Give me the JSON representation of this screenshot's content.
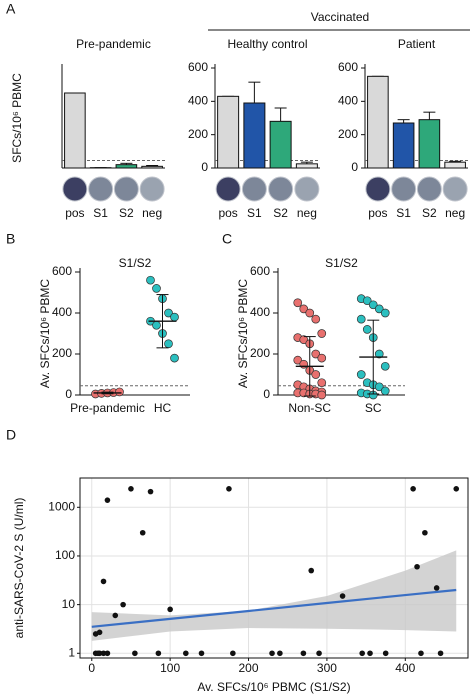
{
  "group_label": "Vaccinated",
  "chart_data": [
    {
      "type": "bar",
      "panel": "A",
      "title": "Pre-pandemic",
      "y_label": "SFCs/10⁶ PBMC",
      "categories": [
        "pos",
        "S1",
        "S2",
        "neg"
      ],
      "colors": [
        "#d9d9d9",
        "#2155a8",
        "#2ea87a",
        "#e6e6e6"
      ],
      "values": [
        450,
        2,
        20,
        10
      ],
      "errors": [
        0,
        0,
        8,
        5
      ],
      "ylim": [
        0,
        600
      ],
      "threshold": 45
    },
    {
      "type": "bar",
      "title": "Healthy control",
      "categories": [
        "pos",
        "S1",
        "S2",
        "neg"
      ],
      "colors": [
        "#d9d9d9",
        "#2155a8",
        "#2ea87a",
        "#e6e6e6"
      ],
      "values": [
        430,
        390,
        280,
        25
      ],
      "errors": [
        0,
        125,
        80,
        10
      ],
      "ylim": [
        0,
        600
      ],
      "yticks": [
        0,
        200,
        400,
        600
      ],
      "threshold": 45
    },
    {
      "type": "bar",
      "title": "Patient",
      "categories": [
        "pos",
        "S1",
        "S2",
        "neg"
      ],
      "colors": [
        "#d9d9d9",
        "#2155a8",
        "#2ea87a",
        "#e6e6e6"
      ],
      "values": [
        550,
        270,
        290,
        35
      ],
      "errors": [
        0,
        20,
        45,
        5
      ],
      "ylim": [
        0,
        600
      ],
      "yticks": [
        0,
        200,
        400,
        600
      ],
      "threshold": 45
    },
    {
      "type": "dot",
      "panel": "B",
      "title": "S1/S2",
      "y_label": "Av. SFCs/10⁶ PBMC",
      "categories": [
        "Pre-pandemic",
        "HC"
      ],
      "ylim": [
        0,
        600
      ],
      "yticks": [
        0,
        200,
        400,
        600
      ],
      "threshold": 45,
      "groups": [
        {
          "color": "#e8706e",
          "values": [
            5,
            8,
            10,
            12,
            15
          ],
          "mean": 10,
          "sd": 4
        },
        {
          "color": "#2bbfbf",
          "values": [
            560,
            520,
            470,
            400,
            380,
            360,
            340,
            300,
            250,
            180
          ],
          "mean": 360,
          "sd": 130
        }
      ]
    },
    {
      "type": "dot",
      "panel": "C",
      "title": "S1/S2",
      "y_label": "Av. SFCs/10⁶ PBMC",
      "categories": [
        "Non-SC",
        "SC"
      ],
      "ylim": [
        0,
        600
      ],
      "yticks": [
        0,
        200,
        400,
        600
      ],
      "threshold": 45,
      "groups": [
        {
          "color": "#e8706e",
          "values": [
            450,
            420,
            400,
            370,
            300,
            280,
            270,
            250,
            200,
            180,
            170,
            150,
            120,
            100,
            60,
            50,
            40,
            30,
            20,
            15,
            10,
            10,
            5,
            5,
            0
          ],
          "mean": 140,
          "sd": 145
        },
        {
          "color": "#2bbfbf",
          "values": [
            470,
            460,
            440,
            420,
            400,
            370,
            320,
            280,
            200,
            140,
            100,
            60,
            50,
            40,
            20,
            10,
            5,
            0
          ],
          "mean": 185,
          "sd": 180
        }
      ]
    },
    {
      "type": "scatter",
      "panel": "D",
      "x_label": "Av. SFCs/10⁶ PBMC (S1/S2)",
      "y_label": "anti-SARS-CoV-2 S (U/ml)",
      "log_y": true,
      "grid": true,
      "color": "#111111",
      "xlim": [
        -15,
        480
      ],
      "ylim": [
        0.8,
        4000
      ],
      "xticks": [
        0,
        100,
        200,
        300,
        400
      ],
      "yticks": [
        1,
        10,
        100,
        1000
      ],
      "x": [
        5,
        8,
        10,
        15,
        20,
        5,
        10,
        15,
        20,
        30,
        40,
        50,
        55,
        65,
        75,
        85,
        100,
        120,
        140,
        175,
        180,
        230,
        240,
        270,
        280,
        290,
        320,
        345,
        355,
        375,
        410,
        415,
        420,
        425,
        440,
        445,
        465
      ],
      "values": [
        1,
        1,
        1,
        1,
        1,
        2.5,
        2.7,
        30,
        1400,
        6,
        10,
        2400,
        1,
        300,
        2100,
        1,
        8,
        1,
        1,
        2400,
        1,
        1,
        1,
        1,
        50,
        1,
        15,
        1,
        1,
        1,
        2400,
        60,
        1,
        300,
        22,
        1,
        2400
      ],
      "fit": {
        "color": "#3a6fc4",
        "band_color": "#c8c8c8",
        "x": [
          0,
          100,
          200,
          300,
          400,
          465
        ],
        "values": [
          3.5,
          5.1,
          7.4,
          10.8,
          15.7,
          20
        ],
        "upper": [
          7,
          6,
          7.5,
          15,
          50,
          130
        ],
        "lower": [
          1.8,
          2.8,
          3.3,
          3.2,
          3,
          2.8
        ]
      }
    }
  ]
}
